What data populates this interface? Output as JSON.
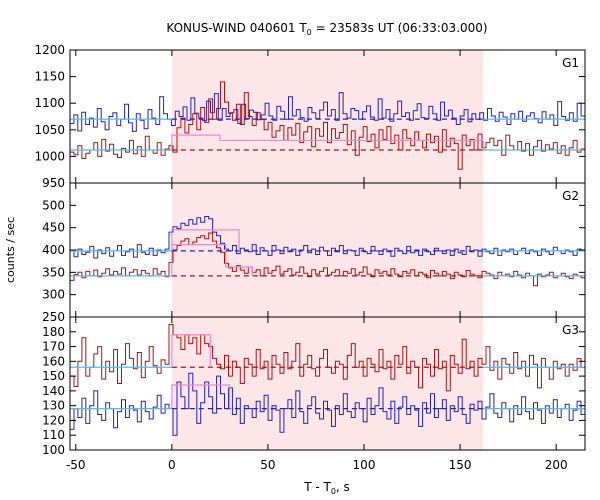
{
  "title": {
    "prefix": "KONUS-WIND 040601 T",
    "sub": "0",
    "suffix": " = 23583s UT (06:33:03.000)"
  },
  "xlabel": {
    "prefix": "T - T",
    "sub": "0",
    "suffix": ", s"
  },
  "ylabel": "counts / sec",
  "colors": {
    "shade": "#fde6e8",
    "blue": "#2222bb",
    "red": "#aa1111",
    "background_fit": "#55b8ee",
    "pulse_fit": "#ee88cc"
  },
  "chart_data": {
    "type": "line",
    "x_range": [
      -53,
      215
    ],
    "x_ticks": [
      -50,
      0,
      50,
      100,
      150,
      200
    ],
    "shaded_interval": [
      0,
      162
    ],
    "grid": false,
    "panels": [
      {
        "name": "G1",
        "y_range": [
          950,
          1200
        ],
        "y_ticks": [
          950,
          1000,
          1050,
          1100,
          1150,
          1200
        ],
        "blue_step": [
          1062,
          1078,
          1048,
          1083,
          1060,
          1072,
          1055,
          1090,
          1065,
          1050,
          1075,
          1082,
          1058,
          1070,
          1098,
          1063,
          1047,
          1080,
          1068,
          1052,
          1088,
          1072,
          1060,
          1112,
          1080,
          1070,
          1058,
          1085,
          1075,
          1093,
          1068,
          1110,
          1081,
          1072,
          1067,
          1104,
          1082,
          1118,
          1068,
          1090,
          1075,
          1082,
          1088,
          1062,
          1098,
          1071,
          1087,
          1083,
          1069,
          1078,
          1100,
          1076,
          1068,
          1094,
          1085,
          1070,
          1112,
          1076,
          1088,
          1073,
          1066,
          1092,
          1082,
          1071,
          1087,
          1102,
          1076,
          1088,
          1068,
          1120,
          1080,
          1072,
          1090,
          1086,
          1070,
          1084,
          1095,
          1074,
          1068,
          1108,
          1072,
          1088,
          1066,
          1080,
          1104,
          1075,
          1082,
          1068,
          1086,
          1099,
          1073,
          1071,
          1094,
          1080,
          1068,
          1102,
          1076,
          1087,
          1072,
          1060,
          1076,
          1088,
          1065,
          1080,
          1070,
          1082,
          1068,
          1090,
          1076,
          1066,
          1083,
          1074,
          1060,
          1080,
          1070,
          1085,
          1066,
          1076,
          1082,
          1071,
          1063,
          1084,
          1070,
          1078,
          1058,
          1103,
          1075,
          1068,
          1082,
          1066,
          1100,
          1076
        ],
        "red_step": [
          1008,
          1003,
          1020,
          996,
          1006,
          1012,
          1026,
          1000,
          1032,
          1010,
          1023,
          1004,
          998,
          1015,
          1008,
          1030,
          1005,
          1018,
          1000,
          1038,
          1012,
          1006,
          1026,
          1002,
          1014,
          1020,
          1008,
          1054,
          1072,
          1044,
          1060,
          1080,
          1050,
          1092,
          1064,
          1108,
          1070,
          1090,
          1140,
          1102,
          1081,
          1068,
          1098,
          1060,
          1120,
          1075,
          1058,
          1082,
          1070,
          1050,
          1064,
          1036,
          1048,
          1058,
          1030,
          1054,
          1040,
          1062,
          1026,
          1046,
          1056,
          1018,
          1052,
          1038,
          1064,
          1026,
          1052,
          1034,
          1045,
          1060,
          1022,
          1048,
          1002,
          1036,
          1056,
          1028,
          1042,
          1016,
          1050,
          1032,
          1056,
          1024,
          1040,
          1012,
          1050,
          1034,
          1020,
          1046,
          1030,
          1016,
          1042,
          1026,
          1038,
          1008,
          1050,
          1018,
          1034,
          1024,
          976,
          1040,
          1020,
          1032,
          1012,
          1042,
          1016,
          1026,
          1034,
          1020,
          1030,
          1002,
          1040,
          1020,
          1012,
          1028,
          1010,
          1024,
          1002,
          1018,
          1030,
          1010,
          1022,
          1014,
          1026,
          1006,
          1020,
          1002,
          1016,
          1030,
          1008,
          1014
        ],
        "blue_fit": {
          "background": 1070
        },
        "red_fit": {
          "background": 1012,
          "pulse": 1040,
          "pulse_interval": [
            0,
            25
          ],
          "plateau": 1030,
          "plateau_end": 162
        }
      },
      {
        "name": "G2",
        "y_range": [
          250,
          550
        ],
        "y_ticks": [
          250,
          300,
          350,
          400,
          450,
          500
        ],
        "blue_step": [
          398,
          385,
          402,
          390,
          395,
          408,
          382,
          400,
          392,
          405,
          386,
          398,
          410,
          388,
          396,
          402,
          384,
          412,
          395,
          390,
          404,
          388,
          400,
          394,
          402,
          440,
          452,
          448,
          460,
          455,
          468,
          458,
          472,
          462,
          475,
          470,
          440,
          432,
          415,
          402,
          398,
          410,
          392,
          404,
          400,
          396,
          412,
          390,
          405,
          398,
          388,
          410,
          400,
          392,
          406,
          396,
          402,
          388,
          400,
          410,
          394,
          402,
          390,
          406,
          398,
          388,
          404,
          396,
          410,
          392,
          400,
          398,
          388,
          404,
          396,
          392,
          408,
          398,
          390,
          402,
          396,
          386,
          404,
          398,
          392,
          408,
          394,
          400,
          388,
          402,
          396,
          390,
          404,
          398,
          392,
          400,
          388,
          402,
          394,
          390,
          408,
          396,
          400,
          386,
          402,
          396,
          392,
          404,
          388,
          400,
          396,
          402,
          390,
          398,
          404,
          392,
          400,
          396,
          388,
          402,
          396,
          390,
          406,
          398,
          392,
          400,
          396,
          388,
          402,
          398
        ],
        "red_step": [
          332,
          345,
          350,
          338,
          352,
          342,
          355,
          340,
          348,
          358,
          344,
          352,
          346,
          360,
          342,
          350,
          356,
          344,
          354,
          348,
          342,
          358,
          346,
          352,
          340,
          372,
          400,
          410,
          420,
          425,
          412,
          418,
          428,
          432,
          425,
          438,
          420,
          405,
          395,
          370,
          360,
          352,
          365,
          355,
          348,
          362,
          350,
          356,
          342,
          360,
          348,
          354,
          364,
          346,
          352,
          358,
          344,
          350,
          362,
          348,
          340,
          356,
          346,
          352,
          360,
          344,
          350,
          356,
          342,
          352,
          348,
          358,
          344,
          350,
          362,
          346,
          340,
          356,
          348,
          352,
          344,
          358,
          346,
          340,
          352,
          348,
          356,
          342,
          350,
          346,
          338,
          354,
          348,
          342,
          352,
          346,
          336,
          350,
          344,
          340,
          354,
          346,
          342,
          338,
          352,
          348,
          344,
          336,
          350,
          342,
          346,
          340,
          352,
          344,
          338,
          348,
          342,
          320,
          346,
          340,
          344,
          350,
          338,
          342,
          348,
          340,
          336,
          346,
          342,
          338
        ],
        "blue_fit": {
          "background": 398,
          "pulse": 445,
          "pulse_interval": [
            0,
            35
          ]
        },
        "red_fit": {
          "background": 342,
          "pulse": 412,
          "pulse_interval": [
            0,
            28
          ],
          "plateau": 362,
          "plateau_end": 42
        }
      },
      {
        "name": "G3",
        "y_range": [
          100,
          190
        ],
        "y_ticks": [
          100,
          110,
          120,
          130,
          140,
          150,
          160,
          170,
          180
        ],
        "blue_step": [
          114,
          128,
          122,
          135,
          118,
          130,
          140,
          124,
          120,
          132,
          128,
          115,
          126,
          134,
          122,
          130,
          127,
          119,
          133,
          126,
          121,
          129,
          137,
          125,
          131,
          128,
          110,
          146,
          136,
          128,
          152,
          140,
          118,
          132,
          146,
          136,
          125,
          150,
          138,
          128,
          142,
          124,
          135,
          118,
          130,
          128,
          122,
          133,
          126,
          137,
          120,
          130,
          127,
          112,
          128,
          134,
          122,
          140,
          126,
          118,
          130,
          136,
          125,
          121,
          133,
          127,
          116,
          130,
          124,
          138,
          126,
          122,
          132,
          128,
          119,
          135,
          124,
          130,
          142,
          126,
          121,
          133,
          118,
          129,
          136,
          124,
          130,
          127,
          116,
          132,
          125,
          138,
          122,
          128,
          134,
          120,
          130,
          126,
          136,
          124,
          118,
          131,
          127,
          133,
          121,
          129,
          138,
          125,
          122,
          132,
          128,
          119,
          130,
          124,
          136,
          126,
          121,
          132,
          127,
          118,
          130,
          125,
          134,
          122,
          128,
          131,
          120,
          127,
          133,
          124
        ],
        "red_step": [
          150,
          143,
          160,
          176,
          150,
          156,
          165,
          170,
          148,
          160,
          153,
          168,
          145,
          158,
          172,
          162,
          155,
          166,
          149,
          160,
          170,
          157,
          152,
          161,
          158,
          185,
          178,
          176,
          168,
          178,
          172,
          176,
          165,
          178,
          172,
          170,
          162,
          158,
          155,
          164,
          150,
          160,
          156,
          145,
          162,
          158,
          150,
          168,
          155,
          160,
          148,
          164,
          158,
          152,
          166,
          155,
          160,
          172,
          150,
          158,
          164,
          155,
          150,
          162,
          168,
          156,
          152,
          160,
          158,
          148,
          164,
          172,
          156,
          160,
          150,
          162,
          158,
          153,
          168,
          155,
          160,
          148,
          164,
          158,
          170,
          152,
          160,
          156,
          142,
          162,
          158,
          150,
          168,
          155,
          160,
          140,
          164,
          158,
          152,
          175,
          155,
          160,
          150,
          162,
          158,
          170,
          154,
          160,
          148,
          162,
          158,
          152,
          166,
          155,
          160,
          150,
          164,
          158,
          142,
          162,
          156,
          148,
          160,
          155,
          158,
          150,
          158,
          154,
          162,
          156
        ],
        "blue_fit": {
          "background": 128,
          "pulse": 144,
          "pulse_interval": [
            0,
            30
          ]
        },
        "red_fit": {
          "background": 156,
          "pulse": 178,
          "pulse_interval": [
            0,
            20
          ]
        }
      }
    ]
  }
}
